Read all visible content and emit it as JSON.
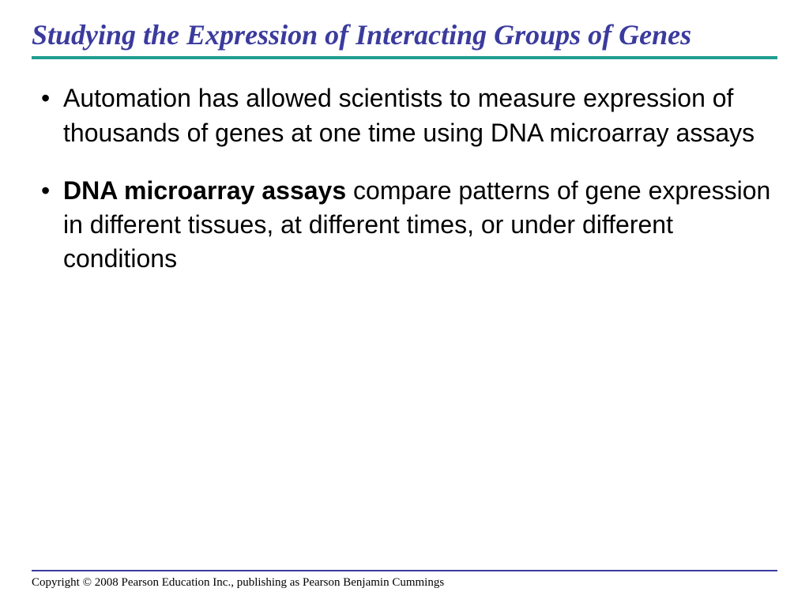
{
  "title": {
    "text": "Studying the Expression of Interacting Groups of Genes",
    "color": "#3b3b9e",
    "fontsize": 36
  },
  "divider": {
    "color": "#1f9e8f",
    "thickness": 4
  },
  "bullets": {
    "fontsize": 32,
    "color": "#000000",
    "items": [
      {
        "pre": "",
        "bold": "",
        "post": "Automation has allowed scientists to measure expression of thousands of genes at one time using DNA microarray assays"
      },
      {
        "pre": "",
        "bold": "DNA microarray assays",
        "post": " compare patterns of gene expression in different tissues, at different times, or under different conditions"
      }
    ]
  },
  "footer": {
    "line_color": "#3b3b9e",
    "line_thickness": 2,
    "text": "Copyright © 2008 Pearson Education Inc., publishing  as Pearson Benjamin Cummings",
    "fontsize": 15
  }
}
